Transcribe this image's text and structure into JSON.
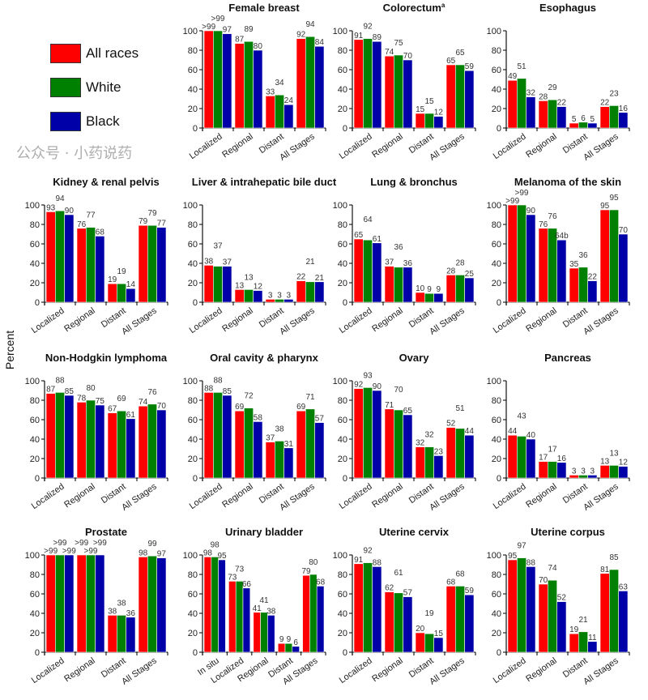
{
  "legend": [
    {
      "label": "All races",
      "color": "#ff0000"
    },
    {
      "label": "White",
      "color": "#008000"
    },
    {
      "label": "Black",
      "color": "#0000a8"
    }
  ],
  "ylabel": "Percent",
  "watermark": "公众号 · 小药说药",
  "chart_data": [
    {
      "type": "bar",
      "title": "Female breast",
      "categories": [
        "Localized",
        "Regional",
        "Distant",
        "All Stages"
      ],
      "ylim": [
        0,
        100
      ],
      "yticks": [
        0,
        20,
        40,
        60,
        80,
        100
      ],
      "series": [
        {
          "name": "All races",
          "values": [
            100,
            87,
            33,
            92
          ],
          "labels": [
            ">99",
            "87",
            "33",
            "92"
          ]
        },
        {
          "name": "White",
          "values": [
            100,
            89,
            34,
            94
          ],
          "labels": [
            ">99",
            "89",
            "34",
            "94"
          ]
        },
        {
          "name": "Black",
          "values": [
            97,
            80,
            24,
            84
          ]
        }
      ]
    },
    {
      "type": "bar",
      "title": "Colorectum",
      "title_sup": "a",
      "categories": [
        "Localized",
        "Regional",
        "Distant",
        "All Stages"
      ],
      "ylim": [
        0,
        100
      ],
      "yticks": [
        0,
        20,
        40,
        60,
        80,
        100
      ],
      "series": [
        {
          "name": "All races",
          "values": [
            91,
            74,
            15,
            65
          ]
        },
        {
          "name": "White",
          "values": [
            92,
            75,
            15,
            65
          ]
        },
        {
          "name": "Black",
          "values": [
            89,
            70,
            12,
            59
          ]
        }
      ]
    },
    {
      "type": "bar",
      "title": "Esophagus",
      "categories": [
        "Localized",
        "Regional",
        "Distant",
        "All Stages"
      ],
      "ylim": [
        0,
        100
      ],
      "yticks": [
        0,
        20,
        40,
        60,
        80,
        100
      ],
      "series": [
        {
          "name": "All races",
          "values": [
            49,
            28,
            5,
            22
          ]
        },
        {
          "name": "White",
          "values": [
            51,
            29,
            6,
            23
          ]
        },
        {
          "name": "Black",
          "values": [
            32,
            22,
            5,
            16
          ]
        }
      ]
    },
    {
      "type": "bar",
      "title": "Kidney & renal pelvis",
      "categories": [
        "Localized",
        "Regional",
        "Distant",
        "All Stages"
      ],
      "ylim": [
        0,
        100
      ],
      "yticks": [
        0,
        20,
        40,
        60,
        80,
        100
      ],
      "series": [
        {
          "name": "All races",
          "values": [
            93,
            76,
            19,
            79
          ]
        },
        {
          "name": "White",
          "values": [
            94,
            77,
            19,
            79
          ]
        },
        {
          "name": "Black",
          "values": [
            90,
            68,
            14,
            77
          ]
        }
      ]
    },
    {
      "type": "bar",
      "title": "Liver & intrahepatic bile duct",
      "categories": [
        "Localized",
        "Regional",
        "Distant",
        "All Stages"
      ],
      "ylim": [
        0,
        100
      ],
      "yticks": [
        0,
        20,
        40,
        60,
        80,
        100
      ],
      "series": [
        {
          "name": "All races",
          "values": [
            38,
            13,
            3,
            22
          ]
        },
        {
          "name": "White",
          "values": [
            37,
            13,
            3,
            21
          ]
        },
        {
          "name": "Black",
          "values": [
            37,
            12,
            3,
            21
          ]
        }
      ]
    },
    {
      "type": "bar",
      "title": "Lung & bronchus",
      "categories": [
        "Localized",
        "Regional",
        "Distant",
        "All Stages"
      ],
      "ylim": [
        0,
        100
      ],
      "yticks": [
        0,
        20,
        40,
        60,
        80,
        100
      ],
      "series": [
        {
          "name": "All races",
          "values": [
            65,
            37,
            10,
            28
          ]
        },
        {
          "name": "White",
          "values": [
            64,
            36,
            9,
            28
          ]
        },
        {
          "name": "Black",
          "values": [
            61,
            36,
            9,
            25
          ]
        }
      ]
    },
    {
      "type": "bar",
      "title": "Melanoma of the skin",
      "categories": [
        "Localized",
        "Regional",
        "Distant",
        "All Stages"
      ],
      "ylim": [
        0,
        100
      ],
      "yticks": [
        0,
        20,
        40,
        60,
        80,
        100
      ],
      "series": [
        {
          "name": "All races",
          "values": [
            100,
            76,
            35,
            95
          ],
          "labels": [
            ">99",
            "76",
            "35",
            "95"
          ]
        },
        {
          "name": "White",
          "values": [
            100,
            76,
            36,
            95
          ],
          "labels": [
            ">99",
            "76",
            "36",
            "95"
          ]
        },
        {
          "name": "Black",
          "values": [
            90,
            64,
            22,
            70
          ],
          "labels": [
            "90",
            "64b",
            "22",
            "70"
          ]
        }
      ]
    },
    {
      "type": "bar",
      "title": "Non-Hodgkin lymphoma",
      "categories": [
        "Localized",
        "Regional",
        "Distant",
        "All Stages"
      ],
      "ylim": [
        0,
        100
      ],
      "yticks": [
        0,
        20,
        40,
        60,
        80,
        100
      ],
      "series": [
        {
          "name": "All races",
          "values": [
            87,
            78,
            67,
            74
          ]
        },
        {
          "name": "White",
          "values": [
            88,
            80,
            69,
            76
          ]
        },
        {
          "name": "Black",
          "values": [
            85,
            75,
            61,
            70
          ]
        }
      ]
    },
    {
      "type": "bar",
      "title": "Oral cavity & pharynx",
      "categories": [
        "Localized",
        "Regional",
        "Distant",
        "All Stages"
      ],
      "ylim": [
        0,
        100
      ],
      "yticks": [
        0,
        20,
        40,
        60,
        80,
        100
      ],
      "series": [
        {
          "name": "All races",
          "values": [
            88,
            69,
            37,
            69
          ]
        },
        {
          "name": "White",
          "values": [
            88,
            72,
            38,
            71
          ]
        },
        {
          "name": "Black",
          "values": [
            85,
            58,
            31,
            57
          ]
        }
      ]
    },
    {
      "type": "bar",
      "title": "Ovary",
      "categories": [
        "Localized",
        "Regional",
        "Distant",
        "All Stages"
      ],
      "ylim": [
        0,
        100
      ],
      "yticks": [
        0,
        20,
        40,
        60,
        80,
        100
      ],
      "series": [
        {
          "name": "All races",
          "values": [
            92,
            71,
            32,
            52
          ]
        },
        {
          "name": "White",
          "values": [
            93,
            70,
            32,
            51
          ]
        },
        {
          "name": "Black",
          "values": [
            90,
            65,
            23,
            44
          ]
        }
      ]
    },
    {
      "type": "bar",
      "title": "Pancreas",
      "categories": [
        "Localized",
        "Regional",
        "Distant",
        "All Stages"
      ],
      "ylim": [
        0,
        100
      ],
      "yticks": [
        0,
        20,
        40,
        60,
        80,
        100
      ],
      "series": [
        {
          "name": "All races",
          "values": [
            44,
            17,
            3,
            13
          ]
        },
        {
          "name": "White",
          "values": [
            43,
            17,
            3,
            13
          ]
        },
        {
          "name": "Black",
          "values": [
            40,
            16,
            3,
            12
          ]
        }
      ]
    },
    {
      "type": "bar",
      "title": "Prostate",
      "categories": [
        "Localized",
        "Regional",
        "Distant",
        "All Stages"
      ],
      "ylim": [
        0,
        100
      ],
      "yticks": [
        0,
        20,
        40,
        60,
        80,
        100
      ],
      "series": [
        {
          "name": "All races",
          "values": [
            100,
            100,
            38,
            98
          ],
          "labels": [
            ">99",
            ">99",
            "38",
            "98"
          ]
        },
        {
          "name": "White",
          "values": [
            100,
            100,
            38,
            99
          ],
          "labels": [
            ">99",
            ">99",
            "38",
            "99"
          ]
        },
        {
          "name": "Black",
          "values": [
            100,
            100,
            36,
            97
          ],
          "labels": [
            ">99",
            ">99",
            "36",
            "97"
          ]
        }
      ]
    },
    {
      "type": "bar",
      "title": "Urinary bladder",
      "categories": [
        "In situ",
        "Localized",
        "Regional",
        "Distant",
        "All Stages"
      ],
      "ylim": [
        0,
        100
      ],
      "yticks": [
        0,
        20,
        40,
        60,
        80,
        100
      ],
      "series": [
        {
          "name": "All races",
          "values": [
            98,
            73,
            41,
            9,
            79
          ]
        },
        {
          "name": "White",
          "values": [
            98,
            73,
            41,
            9,
            80
          ]
        },
        {
          "name": "Black",
          "values": [
            95,
            66,
            38,
            6,
            68
          ]
        }
      ]
    },
    {
      "type": "bar",
      "title": "Uterine cervix",
      "categories": [
        "Localized",
        "Regional",
        "Distant",
        "All Stages"
      ],
      "ylim": [
        0,
        100
      ],
      "yticks": [
        0,
        20,
        40,
        60,
        80,
        100
      ],
      "series": [
        {
          "name": "All races",
          "values": [
            91,
            62,
            20,
            68
          ]
        },
        {
          "name": "White",
          "values": [
            92,
            61,
            19,
            68
          ]
        },
        {
          "name": "Black",
          "values": [
            88,
            57,
            15,
            59
          ]
        }
      ]
    },
    {
      "type": "bar",
      "title": "Uterine corpus",
      "categories": [
        "Localized",
        "Regional",
        "Distant",
        "All Stages"
      ],
      "ylim": [
        0,
        100
      ],
      "yticks": [
        0,
        20,
        40,
        60,
        80,
        100
      ],
      "series": [
        {
          "name": "All races",
          "values": [
            95,
            70,
            19,
            81
          ]
        },
        {
          "name": "White",
          "values": [
            97,
            74,
            21,
            85
          ]
        },
        {
          "name": "Black",
          "values": [
            88,
            52,
            11,
            63
          ]
        }
      ]
    }
  ]
}
